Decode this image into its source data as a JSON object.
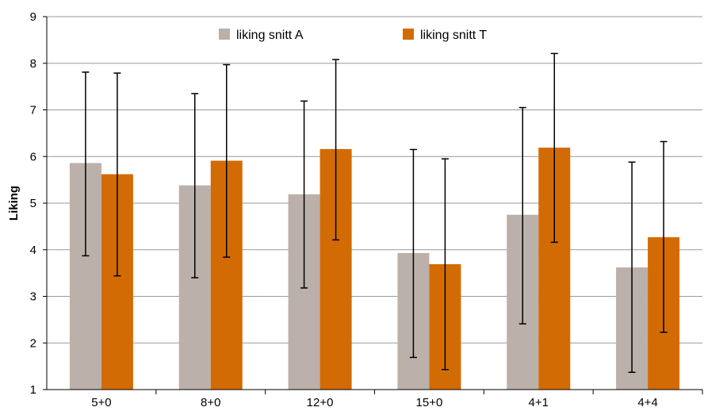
{
  "chart_data": {
    "type": "bar",
    "title": "",
    "xlabel": "",
    "ylabel": "Liking",
    "ylim": [
      1,
      9
    ],
    "yticks": [
      1,
      2,
      3,
      4,
      5,
      6,
      7,
      8,
      9
    ],
    "grid": true,
    "legend_position": "top-center",
    "categories": [
      "5+0",
      "8+0",
      "12+0",
      "15+0",
      "4+1",
      "4+4"
    ],
    "series": [
      {
        "name": "liking snitt A",
        "color": "#bbb0aa",
        "values": [
          5.86,
          5.38,
          5.19,
          3.93,
          4.75,
          3.62
        ],
        "error_low": [
          3.87,
          3.4,
          3.18,
          1.69,
          2.41,
          1.37
        ],
        "error_high": [
          7.81,
          7.35,
          7.19,
          6.15,
          7.05,
          5.88
        ]
      },
      {
        "name": "liking snitt T",
        "color": "#d36b04",
        "values": [
          5.62,
          5.91,
          6.16,
          3.69,
          6.19,
          4.27
        ],
        "error_low": [
          3.44,
          3.84,
          4.21,
          1.43,
          4.16,
          2.23
        ],
        "error_high": [
          7.79,
          7.97,
          8.08,
          5.95,
          8.21,
          6.32
        ]
      }
    ]
  }
}
